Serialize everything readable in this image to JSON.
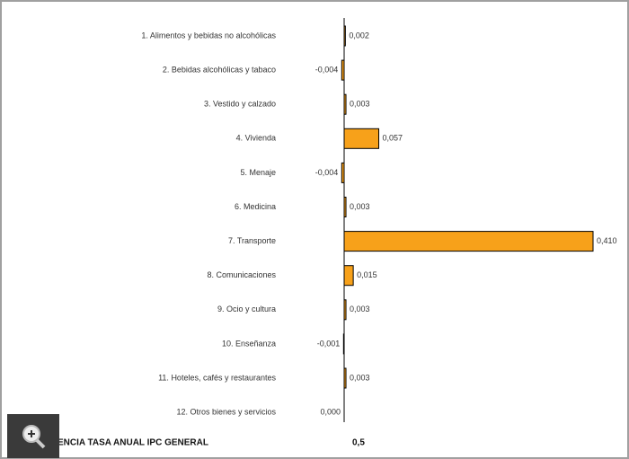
{
  "chart_data": {
    "type": "barh",
    "categories": [
      "1. Alimentos y bebidas no alcohólicas",
      "2. Bebidas alcohólicas y tabaco",
      "3. Vestido y calzado",
      "4. Vivienda",
      "5. Menaje",
      "6. Medicina",
      "7. Transporte",
      "8. Comunicaciones",
      "9. Ocio y cultura",
      "10. Enseñanza",
      "11. Hoteles, cafés y restaurantes",
      "12. Otros bienes y servicios"
    ],
    "values": [
      0.002,
      -0.004,
      0.003,
      0.057,
      -0.004,
      0.003,
      0.41,
      0.015,
      0.003,
      -0.001,
      0.003,
      0.0
    ],
    "value_labels": [
      "0,002",
      "-0,004",
      "0,003",
      "0,057",
      "-0,004",
      "0,003",
      "0,410",
      "0,015",
      "0,003",
      "-0,001",
      "0,003",
      "0,000"
    ],
    "color": "#f7a11a",
    "total": {
      "label": "ENCIA TASA ANUAL IPC GENERAL",
      "value_label": "0,5"
    }
  }
}
